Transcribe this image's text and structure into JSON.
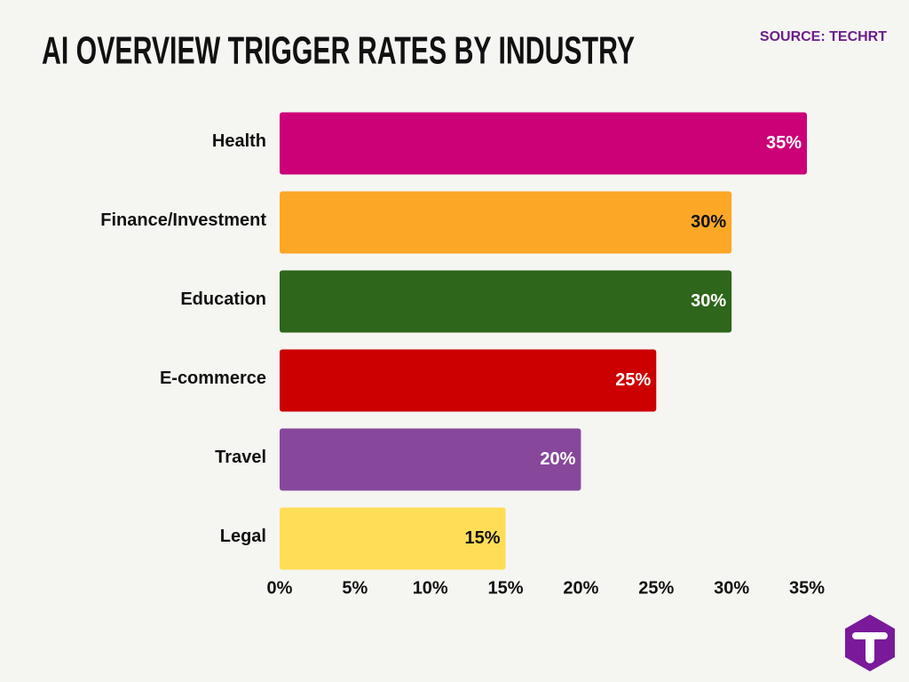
{
  "chart_data": {
    "type": "bar",
    "orientation": "horizontal",
    "title": "AI OVERVIEW TRIGGER RATES BY INDUSTRY",
    "source": "SOURCE: TECHRT",
    "categories": [
      "Health",
      "Finance/Investment",
      "Education",
      "E-commerce",
      "Travel",
      "Legal"
    ],
    "values": [
      35,
      30,
      30,
      25,
      20,
      15
    ],
    "value_labels": [
      "35%",
      "30%",
      "30%",
      "25%",
      "20%",
      "15%"
    ],
    "colors": [
      "#cc0077",
      "#fca726",
      "#2e661c",
      "#cc0000",
      "#87489c",
      "#ffdd57"
    ],
    "xlim": [
      0,
      35
    ],
    "xticks": [
      {
        "value": 0,
        "label": "0%"
      },
      {
        "value": 5,
        "label": "5%"
      },
      {
        "value": 10,
        "label": "10%"
      },
      {
        "value": 15,
        "label": "15%"
      },
      {
        "value": 20,
        "label": "20%"
      },
      {
        "value": 25,
        "label": "25%"
      },
      {
        "value": 30,
        "label": "30%"
      },
      {
        "value": 35,
        "label": "35%"
      }
    ],
    "grid": false
  }
}
